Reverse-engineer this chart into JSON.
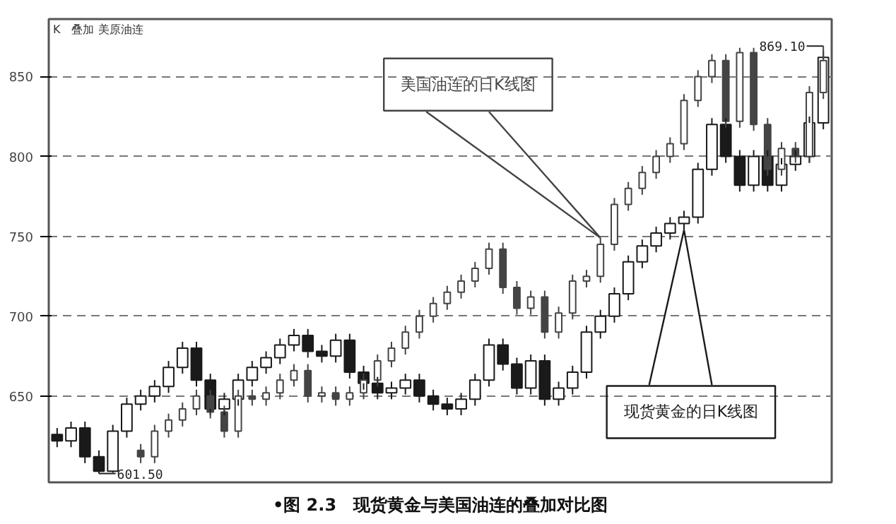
{
  "chart_data": {
    "type": "candlestick",
    "title": "•图 2.3　现货黄金与美国油连的叠加对比图",
    "subtitle": "K　叠加 美原油连",
    "categories": [
      null,
      null,
      null,
      null,
      null,
      null,
      null,
      null,
      null,
      null,
      null,
      null,
      null,
      null,
      null,
      null,
      null,
      null,
      null,
      null,
      null,
      null,
      null,
      null,
      null,
      null,
      null,
      null,
      null,
      null,
      null,
      null,
      null,
      null,
      null,
      null,
      null,
      null,
      null,
      null,
      null,
      null,
      null,
      null,
      null,
      null,
      null,
      null,
      null,
      null,
      null,
      null,
      null,
      null,
      null,
      null
    ],
    "series": [
      {
        "name": "现货黄金的日K线图",
        "color": "#1a1a1a",
        "ohlc": [
          [
            626,
            630,
            618,
            622
          ],
          [
            622,
            634,
            618,
            630
          ],
          [
            630,
            634,
            608,
            612
          ],
          [
            612,
            616,
            601.5,
            603
          ],
          [
            603,
            632,
            602,
            628
          ],
          [
            628,
            649,
            624,
            645
          ],
          [
            645,
            654,
            641,
            650
          ],
          [
            650,
            660,
            646,
            656
          ],
          [
            656,
            672,
            652,
            668
          ],
          [
            668,
            684,
            664,
            680
          ],
          [
            680,
            684,
            656,
            660
          ],
          [
            660,
            664,
            638,
            642
          ],
          [
            642,
            652,
            638,
            648
          ],
          [
            648,
            664,
            644,
            660
          ],
          [
            660,
            672,
            656,
            668
          ],
          [
            668,
            678,
            664,
            674
          ],
          [
            674,
            686,
            670,
            682
          ],
          [
            682,
            692,
            678,
            688
          ],
          [
            688,
            692,
            674,
            678
          ],
          [
            678,
            682,
            671,
            675
          ],
          [
            675,
            689,
            671,
            685
          ],
          [
            685,
            689,
            661,
            665
          ],
          [
            665,
            669,
            654,
            658
          ],
          [
            658,
            662,
            648,
            652
          ],
          [
            652,
            659,
            648,
            655
          ],
          [
            655,
            664,
            651,
            660
          ],
          [
            660,
            664,
            646,
            650
          ],
          [
            650,
            654,
            641,
            645
          ],
          [
            645,
            649,
            638,
            642
          ],
          [
            642,
            652,
            638,
            648
          ],
          [
            648,
            664,
            644,
            660
          ],
          [
            660,
            686,
            656,
            682
          ],
          [
            682,
            686,
            666,
            670
          ],
          [
            670,
            674,
            651,
            655
          ],
          [
            655,
            676,
            651,
            672
          ],
          [
            672,
            676,
            644,
            648
          ],
          [
            648,
            659,
            644,
            655
          ],
          [
            655,
            669,
            651,
            665
          ],
          [
            665,
            694,
            661,
            690
          ],
          [
            690,
            704,
            686,
            700
          ],
          [
            700,
            718,
            696,
            714
          ],
          [
            714,
            738,
            710,
            734
          ],
          [
            734,
            748,
            730,
            744
          ],
          [
            744,
            756,
            740,
            752
          ],
          [
            752,
            762,
            748,
            758
          ],
          [
            758,
            766,
            754,
            762
          ],
          [
            762,
            796,
            758,
            792
          ],
          [
            792,
            824,
            788,
            820
          ],
          [
            820,
            824,
            796,
            800
          ],
          [
            800,
            804,
            778,
            782
          ],
          [
            782,
            804,
            778,
            800
          ],
          [
            800,
            804,
            778,
            782
          ],
          [
            782,
            799,
            778,
            795
          ],
          [
            795,
            804,
            791,
            800
          ],
          [
            800,
            825,
            796,
            821
          ],
          [
            821,
            866,
            817,
            862
          ]
        ]
      },
      {
        "name": "美国油连的日K线图",
        "color": "#444444",
        "ohlc": [
          null,
          null,
          null,
          null,
          null,
          null,
          [
            616,
            620,
            608,
            612
          ],
          [
            612,
            632,
            608,
            628
          ],
          [
            628,
            639,
            624,
            635
          ],
          [
            635,
            646,
            631,
            642
          ],
          [
            642,
            654,
            638,
            650
          ],
          [
            650,
            654,
            636,
            640
          ],
          [
            640,
            644,
            624,
            628
          ],
          [
            628,
            654,
            624,
            650
          ],
          [
            650,
            654,
            644,
            648
          ],
          [
            648,
            656,
            644,
            652
          ],
          [
            652,
            664,
            648,
            660
          ],
          [
            660,
            670,
            656,
            666
          ],
          [
            666,
            670,
            646,
            650
          ],
          [
            650,
            656,
            646,
            652
          ],
          [
            652,
            656,
            644,
            648
          ],
          [
            648,
            656,
            644,
            652
          ],
          [
            652,
            664,
            648,
            660
          ],
          [
            660,
            676,
            656,
            672
          ],
          [
            672,
            684,
            668,
            680
          ],
          [
            680,
            694,
            676,
            690
          ],
          [
            690,
            704,
            686,
            700
          ],
          [
            700,
            712,
            696,
            708
          ],
          [
            708,
            719,
            704,
            715
          ],
          [
            715,
            726,
            711,
            722
          ],
          [
            722,
            734,
            718,
            730
          ],
          [
            730,
            746,
            726,
            742
          ],
          [
            742,
            746,
            714,
            718
          ],
          [
            718,
            722,
            701,
            705
          ],
          [
            705,
            716,
            701,
            712
          ],
          [
            712,
            716,
            686,
            690
          ],
          [
            690,
            706,
            686,
            702
          ],
          [
            702,
            726,
            698,
            722
          ],
          [
            722,
            729,
            718,
            725
          ],
          [
            725,
            749,
            721,
            745
          ],
          [
            745,
            774,
            741,
            770
          ],
          [
            770,
            784,
            766,
            780
          ],
          [
            780,
            794,
            776,
            790
          ],
          [
            790,
            804,
            786,
            800
          ],
          [
            800,
            812,
            796,
            808
          ],
          [
            808,
            839,
            804,
            835
          ],
          [
            835,
            854,
            831,
            850
          ],
          [
            850,
            864,
            846,
            860
          ],
          [
            860,
            864,
            818,
            822
          ],
          [
            822,
            868,
            818,
            865
          ],
          [
            865,
            868,
            816,
            820
          ],
          [
            820,
            824,
            788,
            792
          ],
          [
            792,
            809,
            788,
            805
          ],
          [
            805,
            809,
            796,
            800
          ],
          [
            800,
            844,
            796,
            840
          ],
          [
            840,
            869.1,
            836,
            860
          ]
        ]
      }
    ],
    "annotations": [
      "601.50",
      "869.10"
    ],
    "ylim": [
      596,
      886
    ],
    "yticks": [
      650,
      700,
      750,
      800,
      850
    ],
    "grid": "y",
    "legend": false,
    "tick_labels": "y"
  }
}
